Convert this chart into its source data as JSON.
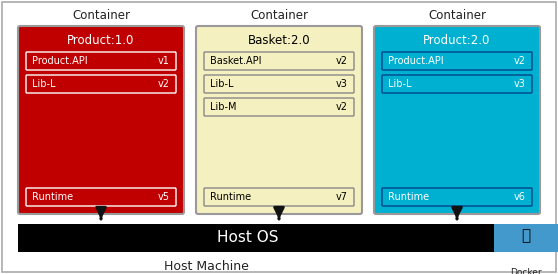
{
  "fig_width": 5.58,
  "fig_height": 2.74,
  "dpi": 100,
  "bg_color": "#ffffff",
  "border_color": "#aaaaaa",
  "containers": [
    {
      "label": "Container",
      "col": 0,
      "bg": "#c00000",
      "title": "Product:1.0",
      "title_color": "#ffffff",
      "items": [
        {
          "left": "Product.API",
          "right": "v1",
          "bg": "#c00000",
          "border": "#ffffff",
          "tc": "#ffffff"
        },
        {
          "left": "Lib-L",
          "right": "v2",
          "bg": "#c00000",
          "border": "#ffffff",
          "tc": "#ffffff"
        }
      ],
      "runtime": {
        "left": "Runtime",
        "right": "v5",
        "bg": "#c00000",
        "border": "#ffffff",
        "tc": "#ffffff"
      },
      "item_border_color": "#ffffff"
    },
    {
      "label": "Container",
      "col": 1,
      "bg": "#f5f0c0",
      "title": "Basket:2.0",
      "title_color": "#000000",
      "items": [
        {
          "left": "Basket.API",
          "right": "v2",
          "bg": "#f5f0c0",
          "border": "#888888",
          "tc": "#000000"
        },
        {
          "left": "Lib-L",
          "right": "v3",
          "bg": "#f5f0c0",
          "border": "#888888",
          "tc": "#000000"
        },
        {
          "left": "Lib-M",
          "right": "v2",
          "bg": "#f5f0c0",
          "border": "#888888",
          "tc": "#000000"
        }
      ],
      "runtime": {
        "left": "Runtime",
        "right": "v7",
        "bg": "#f5f0c0",
        "border": "#888888",
        "tc": "#000000"
      },
      "item_border_color": "#888888"
    },
    {
      "label": "Container",
      "col": 2,
      "bg": "#00b0d0",
      "title": "Product:2.0",
      "title_color": "#ffffff",
      "items": [
        {
          "left": "Product.API",
          "right": "v2",
          "bg": "#00b0d0",
          "border": "#004488",
          "tc": "#ffffff"
        },
        {
          "left": "Lib-L",
          "right": "v3",
          "bg": "#00b0d0",
          "border": "#004488",
          "tc": "#ffffff"
        }
      ],
      "runtime": {
        "left": "Runtime",
        "right": "v6",
        "bg": "#00b0d0",
        "border": "#004488",
        "tc": "#ffffff"
      },
      "item_border_color": "#004488"
    }
  ],
  "host_os_bg": "#000000",
  "host_os_text": "Host OS",
  "host_os_text_color": "#ffffff",
  "docker_bg": "#4499cc",
  "host_machine_text": "Host Machine",
  "docker_label": "Docker\nRuntime",
  "arrow_color": "#111111"
}
